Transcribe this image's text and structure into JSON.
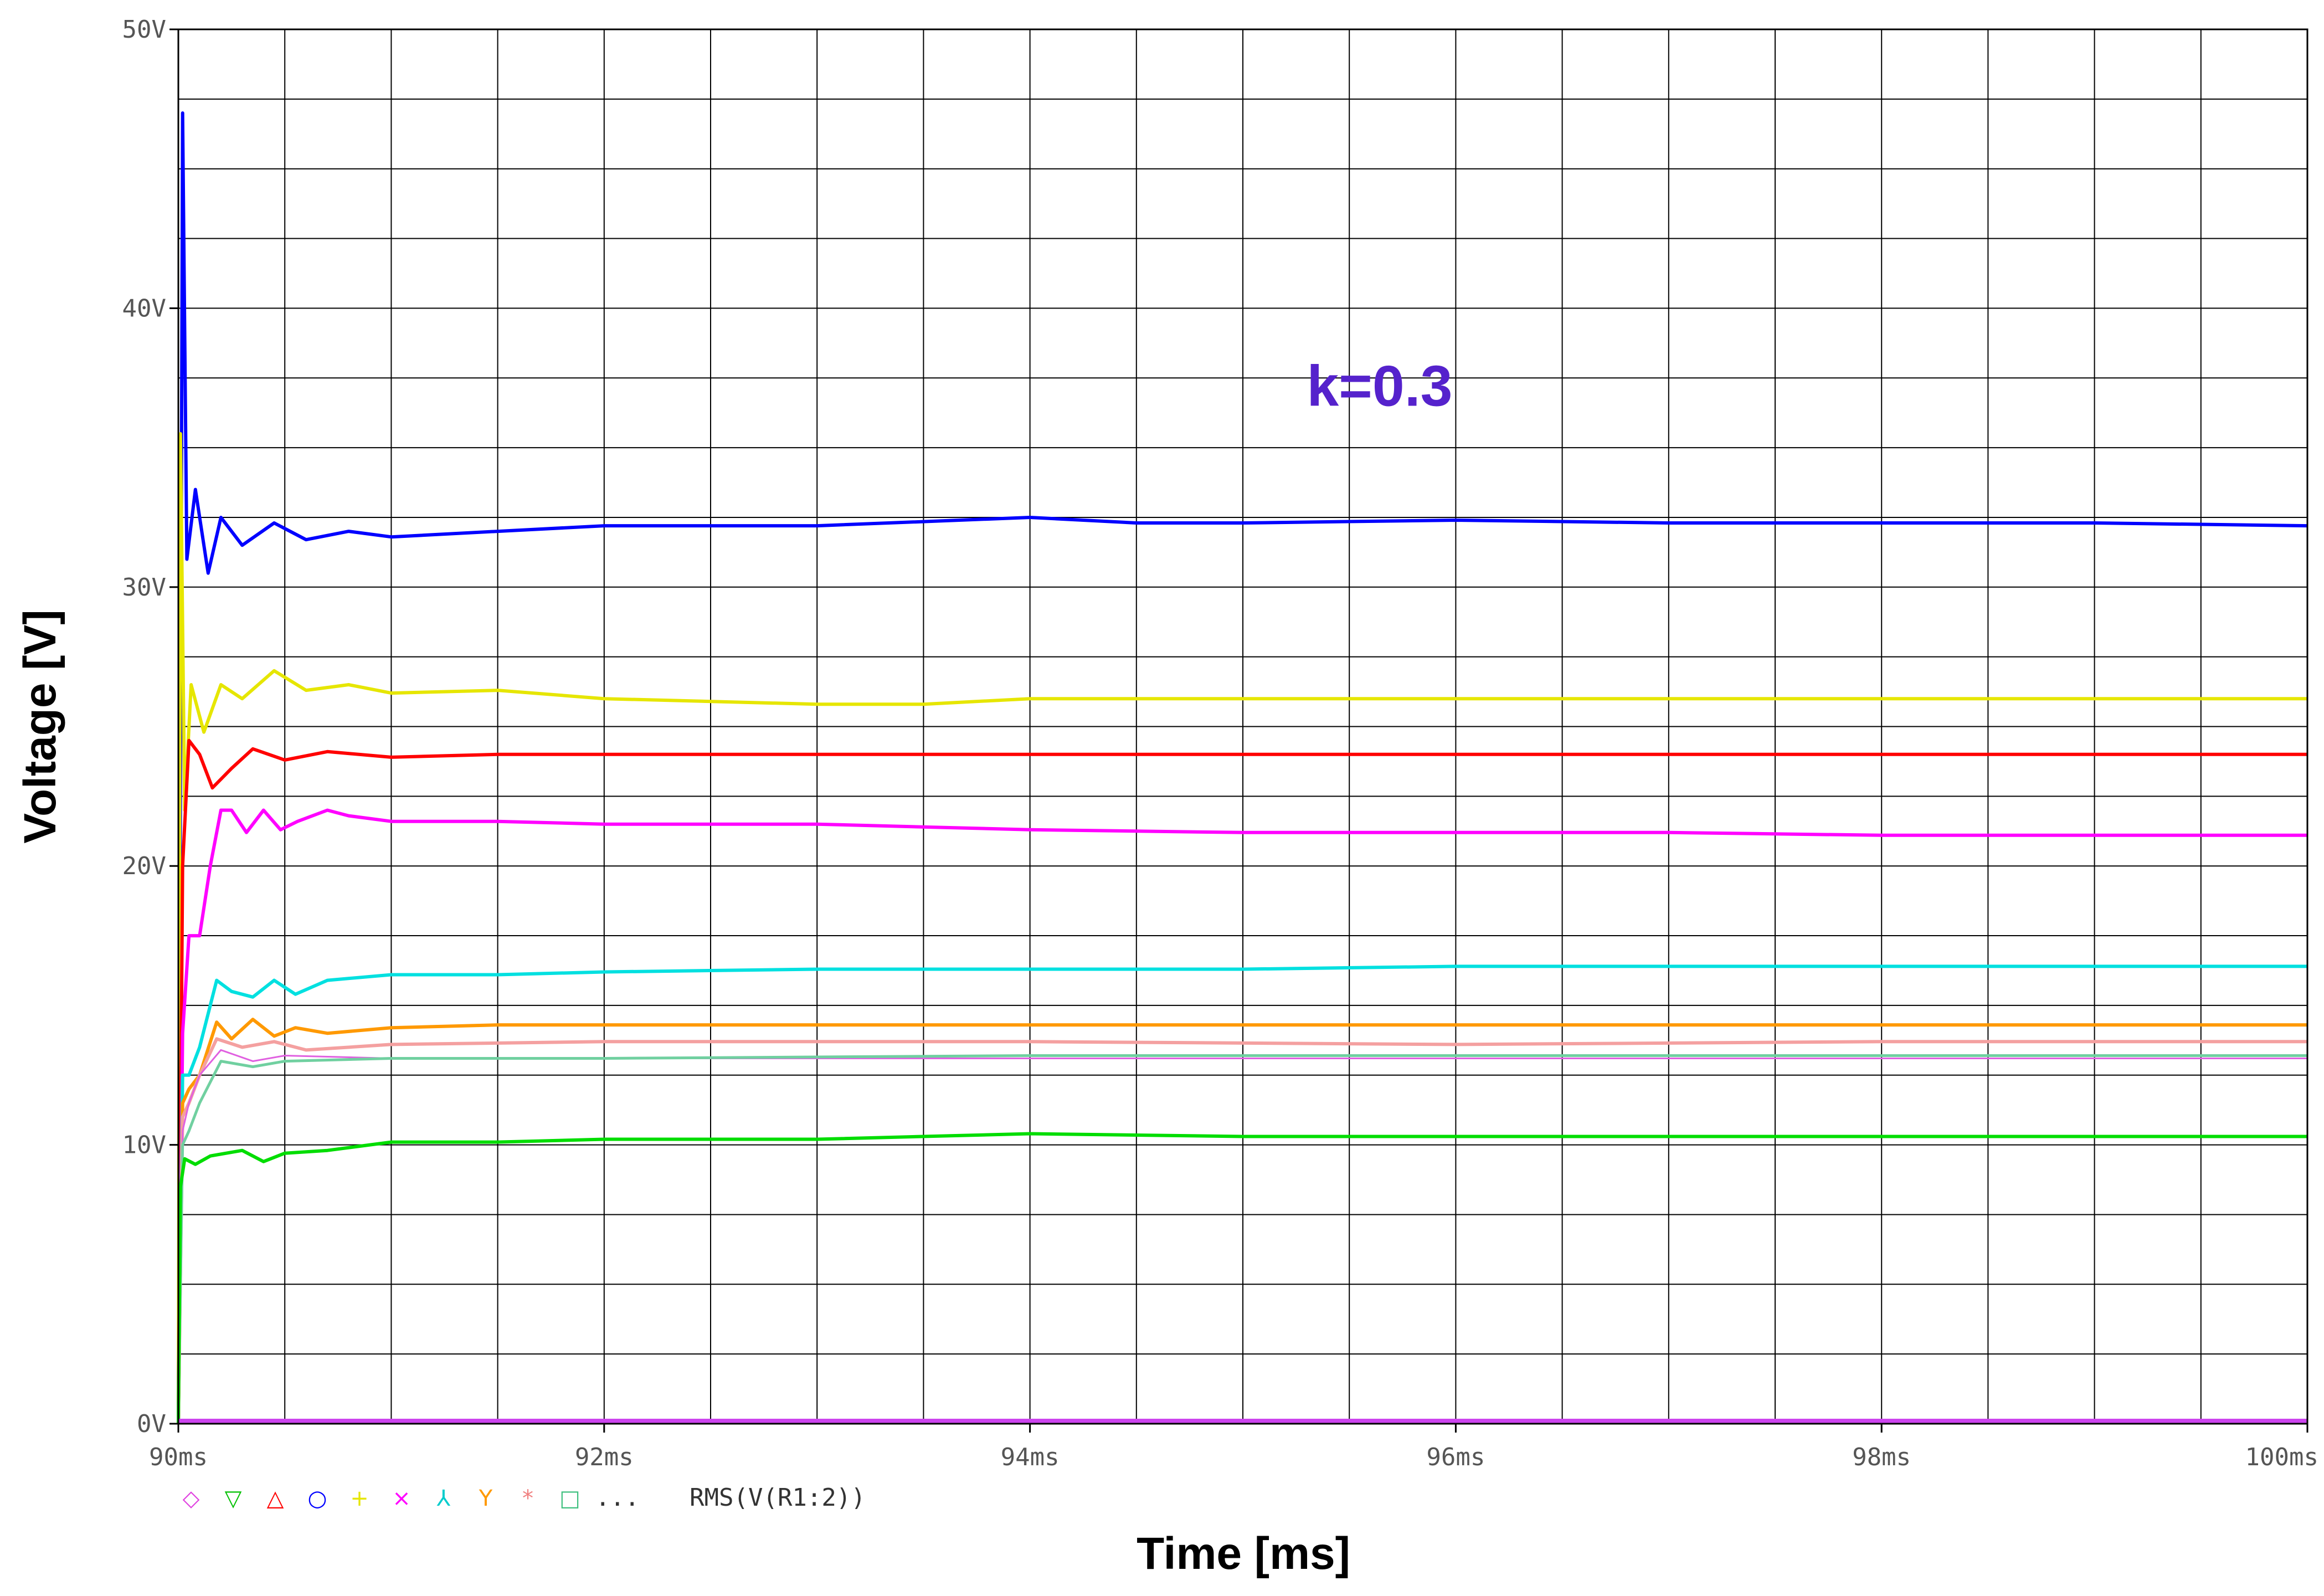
{
  "chart_data": {
    "type": "line",
    "title": "",
    "xlabel": "Time [ms]",
    "ylabel": "Voltage [V]",
    "xlim": [
      90,
      100
    ],
    "ylim": [
      0,
      50
    ],
    "x_ticks": [
      90,
      92,
      94,
      96,
      98,
      100
    ],
    "x_tick_labels": [
      "90ms",
      "92ms",
      "94ms",
      "96ms",
      "98ms",
      "100ms"
    ],
    "y_ticks": [
      0,
      10,
      20,
      30,
      40,
      50
    ],
    "y_tick_labels": [
      "0V",
      "10V",
      "20V",
      "30V",
      "40V",
      "50V"
    ],
    "grid": true,
    "annotation": {
      "text": "k=0.3",
      "color": "#5522cc",
      "x": 95.3,
      "y": 36.5
    },
    "legend": {
      "placement": "bottom-left",
      "markers": [
        {
          "symbol": "◇",
          "color": "#e040e0"
        },
        {
          "symbol": "▽",
          "color": "#00c000"
        },
        {
          "symbol": "△",
          "color": "#ff0000"
        },
        {
          "symbol": "○",
          "color": "#0000ff"
        },
        {
          "symbol": "+",
          "color": "#e6e600"
        },
        {
          "symbol": "×",
          "color": "#ff00ff"
        },
        {
          "symbol": "⅄",
          "color": "#00cccc"
        },
        {
          "symbol": "Y",
          "color": "#ff9900"
        },
        {
          "symbol": "*",
          "color": "#f08080"
        },
        {
          "symbol": "□",
          "color": "#40c080"
        }
      ],
      "ellipsis": "...",
      "label": "RMS(V(R1:2))"
    },
    "series": [
      {
        "color": "#0000ff",
        "width": 6,
        "x": [
          90.0,
          90.02,
          90.04,
          90.08,
          90.14,
          90.2,
          90.3,
          90.45,
          90.6,
          90.8,
          91.0,
          91.5,
          92.0,
          93.0,
          94.0,
          94.5,
          95.0,
          96.0,
          97.0,
          98.0,
          99.0,
          100.0
        ],
        "y": [
          0,
          47,
          31,
          33.5,
          30.5,
          32.5,
          31.5,
          32.3,
          31.7,
          32.0,
          31.8,
          32.0,
          32.2,
          32.2,
          32.5,
          32.3,
          32.3,
          32.4,
          32.3,
          32.3,
          32.3,
          32.2
        ]
      },
      {
        "color": "#e6e600",
        "width": 6,
        "x": [
          90.0,
          90.01,
          90.03,
          90.06,
          90.12,
          90.2,
          90.3,
          90.45,
          90.6,
          90.8,
          91.0,
          91.5,
          92.0,
          93.0,
          93.5,
          94.0,
          95.0,
          96.0,
          97.0,
          98.0,
          99.0,
          100.0
        ],
        "y": [
          0,
          35.5,
          22,
          26.5,
          24.8,
          26.5,
          26.0,
          27.0,
          26.3,
          26.5,
          26.2,
          26.3,
          26.0,
          25.8,
          25.8,
          26.0,
          26.0,
          26.0,
          26.0,
          26.0,
          26.0,
          26.0
        ]
      },
      {
        "color": "#ff0000",
        "width": 6,
        "x": [
          90.0,
          90.02,
          90.05,
          90.1,
          90.16,
          90.25,
          90.35,
          90.5,
          90.7,
          91.0,
          91.5,
          92.0,
          93.0,
          94.0,
          95.0,
          96.0,
          97.0,
          98.0,
          99.0,
          100.0
        ],
        "y": [
          0,
          20,
          24.5,
          24.0,
          22.8,
          23.5,
          24.2,
          23.8,
          24.1,
          23.9,
          24.0,
          24.0,
          24.0,
          24.0,
          24.0,
          24.0,
          24.0,
          24.0,
          24.0,
          24.0
        ]
      },
      {
        "color": "#ff00ff",
        "width": 6,
        "x": [
          90.0,
          90.02,
          90.05,
          90.1,
          90.15,
          90.2,
          90.25,
          90.32,
          90.4,
          90.48,
          90.56,
          90.7,
          90.8,
          91.0,
          91.5,
          92.0,
          93.0,
          94.0,
          95.0,
          96.0,
          97.0,
          98.0,
          99.0,
          100.0
        ],
        "y": [
          0,
          14,
          17.5,
          17.5,
          20.0,
          22.0,
          22.0,
          21.2,
          22.0,
          21.3,
          21.6,
          22.0,
          21.8,
          21.6,
          21.6,
          21.5,
          21.5,
          21.3,
          21.2,
          21.2,
          21.2,
          21.1,
          21.1,
          21.1
        ]
      },
      {
        "color": "#00e0e0",
        "width": 6,
        "x": [
          90.0,
          90.02,
          90.05,
          90.1,
          90.18,
          90.25,
          90.35,
          90.45,
          90.55,
          90.7,
          91.0,
          91.5,
          92.0,
          93.0,
          94.0,
          95.0,
          96.0,
          97.0,
          98.0,
          99.0,
          100.0
        ],
        "y": [
          0,
          12.5,
          12.5,
          13.5,
          15.9,
          15.5,
          15.3,
          15.9,
          15.4,
          15.9,
          16.1,
          16.1,
          16.2,
          16.3,
          16.3,
          16.3,
          16.4,
          16.4,
          16.4,
          16.4,
          16.4
        ]
      },
      {
        "color": "#ff9900",
        "width": 6,
        "x": [
          90.0,
          90.02,
          90.05,
          90.1,
          90.18,
          90.25,
          90.35,
          90.45,
          90.55,
          90.7,
          91.0,
          91.5,
          92.0,
          93.0,
          94.0,
          95.0,
          96.0,
          97.0,
          98.0,
          99.0,
          100.0
        ],
        "y": [
          0,
          11.5,
          12.0,
          12.5,
          14.4,
          13.8,
          14.5,
          13.9,
          14.2,
          14.0,
          14.2,
          14.3,
          14.3,
          14.3,
          14.3,
          14.3,
          14.3,
          14.3,
          14.3,
          14.3,
          14.3
        ]
      },
      {
        "color": "#f4a0a0",
        "width": 6,
        "x": [
          90.0,
          90.02,
          90.05,
          90.1,
          90.18,
          90.3,
          90.45,
          90.6,
          91.0,
          92.0,
          94.0,
          96.0,
          98.0,
          100.0
        ],
        "y": [
          0,
          11,
          11.5,
          12.5,
          13.8,
          13.5,
          13.7,
          13.4,
          13.6,
          13.7,
          13.7,
          13.6,
          13.7,
          13.7
        ]
      },
      {
        "color": "#e060e0",
        "width": 3,
        "x": [
          90.0,
          90.02,
          90.05,
          90.1,
          90.2,
          90.35,
          90.5,
          91.0,
          92.0,
          94.0,
          96.0,
          98.0,
          100.0
        ],
        "y": [
          0,
          10.5,
          11.5,
          12.5,
          13.4,
          13.0,
          13.2,
          13.1,
          13.1,
          13.1,
          13.1,
          13.1,
          13.1
        ]
      },
      {
        "color": "#70d0a0",
        "width": 5,
        "x": [
          90.0,
          90.02,
          90.05,
          90.1,
          90.2,
          90.35,
          90.5,
          91.0,
          92.0,
          94.0,
          96.0,
          98.0,
          100.0
        ],
        "y": [
          0,
          10,
          10.5,
          11.5,
          13.0,
          12.8,
          13.0,
          13.1,
          13.1,
          13.2,
          13.2,
          13.2,
          13.2
        ]
      },
      {
        "color": "#00dd00",
        "width": 6,
        "x": [
          90.0,
          90.01,
          90.03,
          90.08,
          90.15,
          90.3,
          90.4,
          90.5,
          90.7,
          91.0,
          91.5,
          92.0,
          93.0,
          94.0,
          95.0,
          96.0,
          97.0,
          98.0,
          99.0,
          100.0
        ],
        "y": [
          0,
          8.5,
          9.5,
          9.3,
          9.6,
          9.8,
          9.4,
          9.7,
          9.8,
          10.1,
          10.1,
          10.2,
          10.2,
          10.4,
          10.3,
          10.3,
          10.3,
          10.3,
          10.3,
          10.3
        ]
      },
      {
        "color": "#cc44ee",
        "width": 8,
        "x": [
          90.0,
          100.0
        ],
        "y": [
          0.1,
          0.1
        ]
      }
    ]
  }
}
